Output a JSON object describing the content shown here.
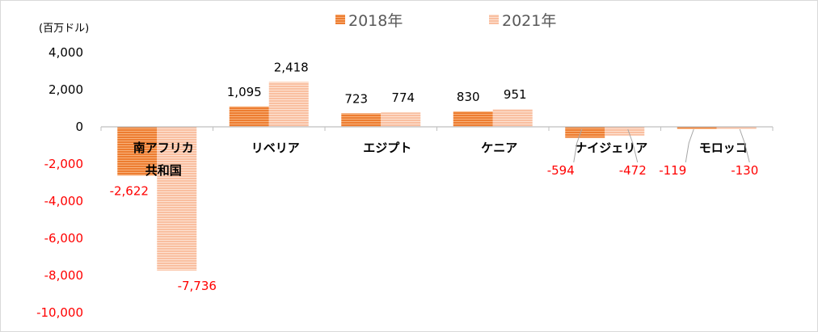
{
  "chart_data": {
    "type": "bar",
    "unit_label": "(百万ドル)",
    "categories": [
      "南アフリカ共和国",
      "リベリア",
      "エジプト",
      "ケニア",
      "ナイジェリア",
      "モロッコ"
    ],
    "category_label_lines": [
      [
        "南アフリカ",
        "共和国"
      ],
      [
        "リベリア"
      ],
      [
        "エジプト"
      ],
      [
        "ケニア"
      ],
      [
        "ナイジェリア"
      ],
      [
        "モロッコ"
      ]
    ],
    "series": [
      {
        "name": "2018年",
        "values": [
          -2622,
          1095,
          723,
          830,
          -594,
          -119
        ],
        "labels": [
          "-2,622",
          "1,095",
          "723",
          "830",
          "-594",
          "-119"
        ],
        "color": "#f4934a"
      },
      {
        "name": "2021年",
        "values": [
          -7736,
          2418,
          774,
          951,
          -472,
          -130
        ],
        "labels": [
          "-7,736",
          "2,418",
          "774",
          "951",
          "-472",
          "-130"
        ],
        "color": "#fbc9ad"
      }
    ],
    "ylim": [
      -10000,
      4000
    ],
    "yticks": [
      4000,
      2000,
      0,
      -2000,
      -4000,
      -6000,
      -8000,
      -10000
    ],
    "ytick_labels": [
      "4,000",
      "2,000",
      "0",
      "-2,000",
      "-4,000",
      "-6,000",
      "-8,000",
      "-10,000"
    ],
    "negative_label_color": "#ff0000",
    "positive_label_color": "#000000",
    "axis_color": "#bfbfbf",
    "legend_position": "top-center",
    "grid": false
  }
}
